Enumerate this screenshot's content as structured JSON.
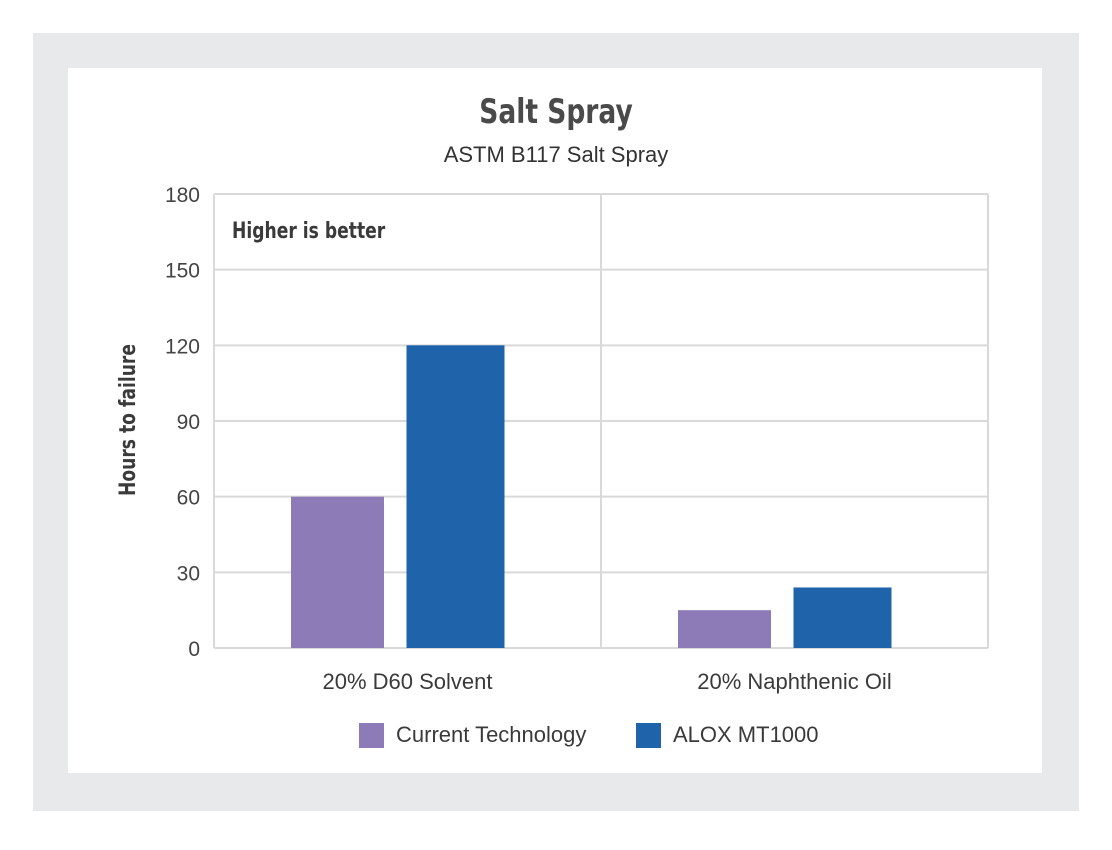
{
  "colors": {
    "frame": "#e8e9eb",
    "grid": "#d9d9d9",
    "series_current": "#8d7bb8",
    "series_alox": "#1f63aa"
  },
  "chart_data": {
    "type": "bar",
    "title": "Salt Spray",
    "subtitle": "ASTM B117 Salt Spray",
    "ylabel": "Hours to failure",
    "xlabel": "",
    "annotation": "Higher is better",
    "categories": [
      "20% D60 Solvent",
      "20% Naphthenic Oil"
    ],
    "series": [
      {
        "name": "Current Technology",
        "values": [
          60,
          15
        ]
      },
      {
        "name": "ALOX MT1000",
        "values": [
          120,
          24
        ]
      }
    ],
    "ylim": [
      0,
      180
    ],
    "yticks": [
      "0",
      "30",
      "60",
      "90",
      "120",
      "150",
      "180"
    ],
    "grid": true,
    "legend": "bottom"
  }
}
